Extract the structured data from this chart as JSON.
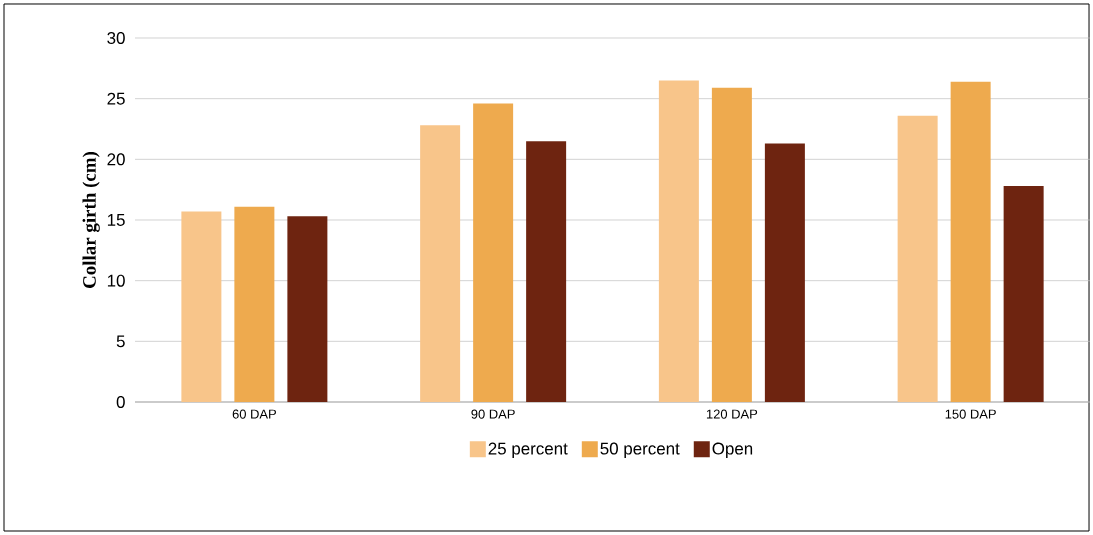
{
  "chart_data": {
    "type": "bar",
    "ylabel": "Collar girth (cm)",
    "categories": [
      "60 DAP",
      "90 DAP",
      "120 DAP",
      "150 DAP"
    ],
    "series": [
      {
        "name": "25 percent",
        "color": "#f8c58a",
        "values": [
          15.7,
          22.8,
          26.5,
          23.6
        ]
      },
      {
        "name": "50 percent",
        "color": "#eeaa4e",
        "values": [
          16.1,
          24.6,
          25.9,
          26.4
        ]
      },
      {
        "name": "Open",
        "color": "#6e2410",
        "values": [
          15.3,
          21.5,
          21.3,
          17.8
        ]
      }
    ],
    "ylim": [
      0,
      30
    ],
    "yticks": [
      0,
      5,
      10,
      15,
      20,
      25,
      30
    ],
    "grid": "y",
    "legend": "bottom"
  }
}
